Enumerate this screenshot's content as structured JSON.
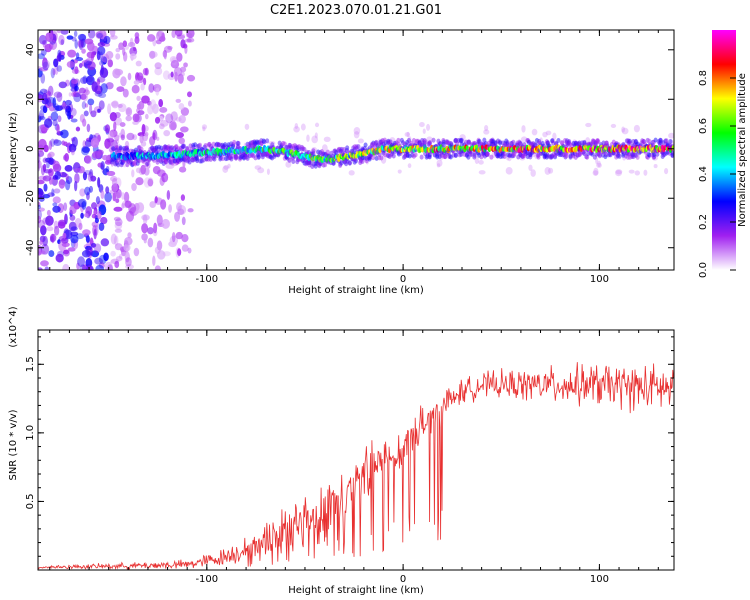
{
  "figure_title": "C2E1.2023.070.01.21.G01",
  "colors": {
    "snr_line": "#e83030",
    "axis": "#000000",
    "background": "#ffffff"
  },
  "chart_data": [
    {
      "type": "heatmap",
      "title": "",
      "xlabel": "Height of straight line (km)",
      "ylabel": "Frequency (Hz)",
      "xlim": [
        -186,
        138
      ],
      "ylim": [
        -49,
        48
      ],
      "x_ticks": [
        -100,
        0,
        100
      ],
      "y_ticks": [
        40,
        20,
        0,
        -20,
        -40
      ],
      "colorbar": {
        "label": "Normalized spectral amplitude",
        "range": [
          0,
          1
        ],
        "ticks": [
          "0.0",
          "0.2",
          "0.4",
          "0.6",
          "0.8"
        ],
        "colormap": [
          "#ffffff",
          "#a020f0",
          "#0000ff",
          "#00ffff",
          "#00ff00",
          "#ffff00",
          "#ff0000",
          "#ff00ff"
        ]
      },
      "signal_trace": {
        "x": [
          -148,
          -130,
          -110,
          -90,
          -70,
          -55,
          -45,
          -35,
          -20,
          -10,
          0,
          20,
          40,
          60,
          80,
          100,
          120,
          138
        ],
        "freq": [
          -3,
          -3,
          -2,
          -1,
          0,
          -2,
          -4,
          -4,
          -2,
          0,
          0,
          0,
          0,
          0,
          0,
          0,
          0,
          0
        ]
      },
      "noise_region": {
        "x_start": -186,
        "x_end": -108
      }
    },
    {
      "type": "line",
      "title": "",
      "xlabel": "Height of straight line (km)",
      "ylabel": "SNR (10 * v/v)",
      "y_multiplier": "(x10^4)",
      "xlim": [
        -186,
        138
      ],
      "ylim": [
        0,
        1.75
      ],
      "x_ticks": [
        -100,
        0,
        100
      ],
      "y_ticks": [
        0.5,
        1.0,
        1.5
      ],
      "series": [
        {
          "envelope_x": [
            -186,
            -140,
            -110,
            -95,
            -80,
            -70,
            -60,
            -50,
            -40,
            -30,
            -20,
            -10,
            0,
            10,
            20,
            30,
            40,
            60,
            80,
            100,
            120,
            138
          ],
          "envelope_mean": [
            0.02,
            0.03,
            0.04,
            0.08,
            0.15,
            0.22,
            0.3,
            0.38,
            0.45,
            0.55,
            0.65,
            0.78,
            0.9,
            1.05,
            1.2,
            1.3,
            1.35,
            1.35,
            1.35,
            1.35,
            1.33,
            1.32
          ],
          "envelope_spread": [
            0.01,
            0.02,
            0.03,
            0.05,
            0.08,
            0.12,
            0.17,
            0.2,
            0.2,
            0.2,
            0.2,
            0.18,
            0.15,
            0.13,
            0.1,
            0.08,
            0.08,
            0.1,
            0.12,
            0.14,
            0.15,
            0.15
          ]
        }
      ]
    }
  ]
}
